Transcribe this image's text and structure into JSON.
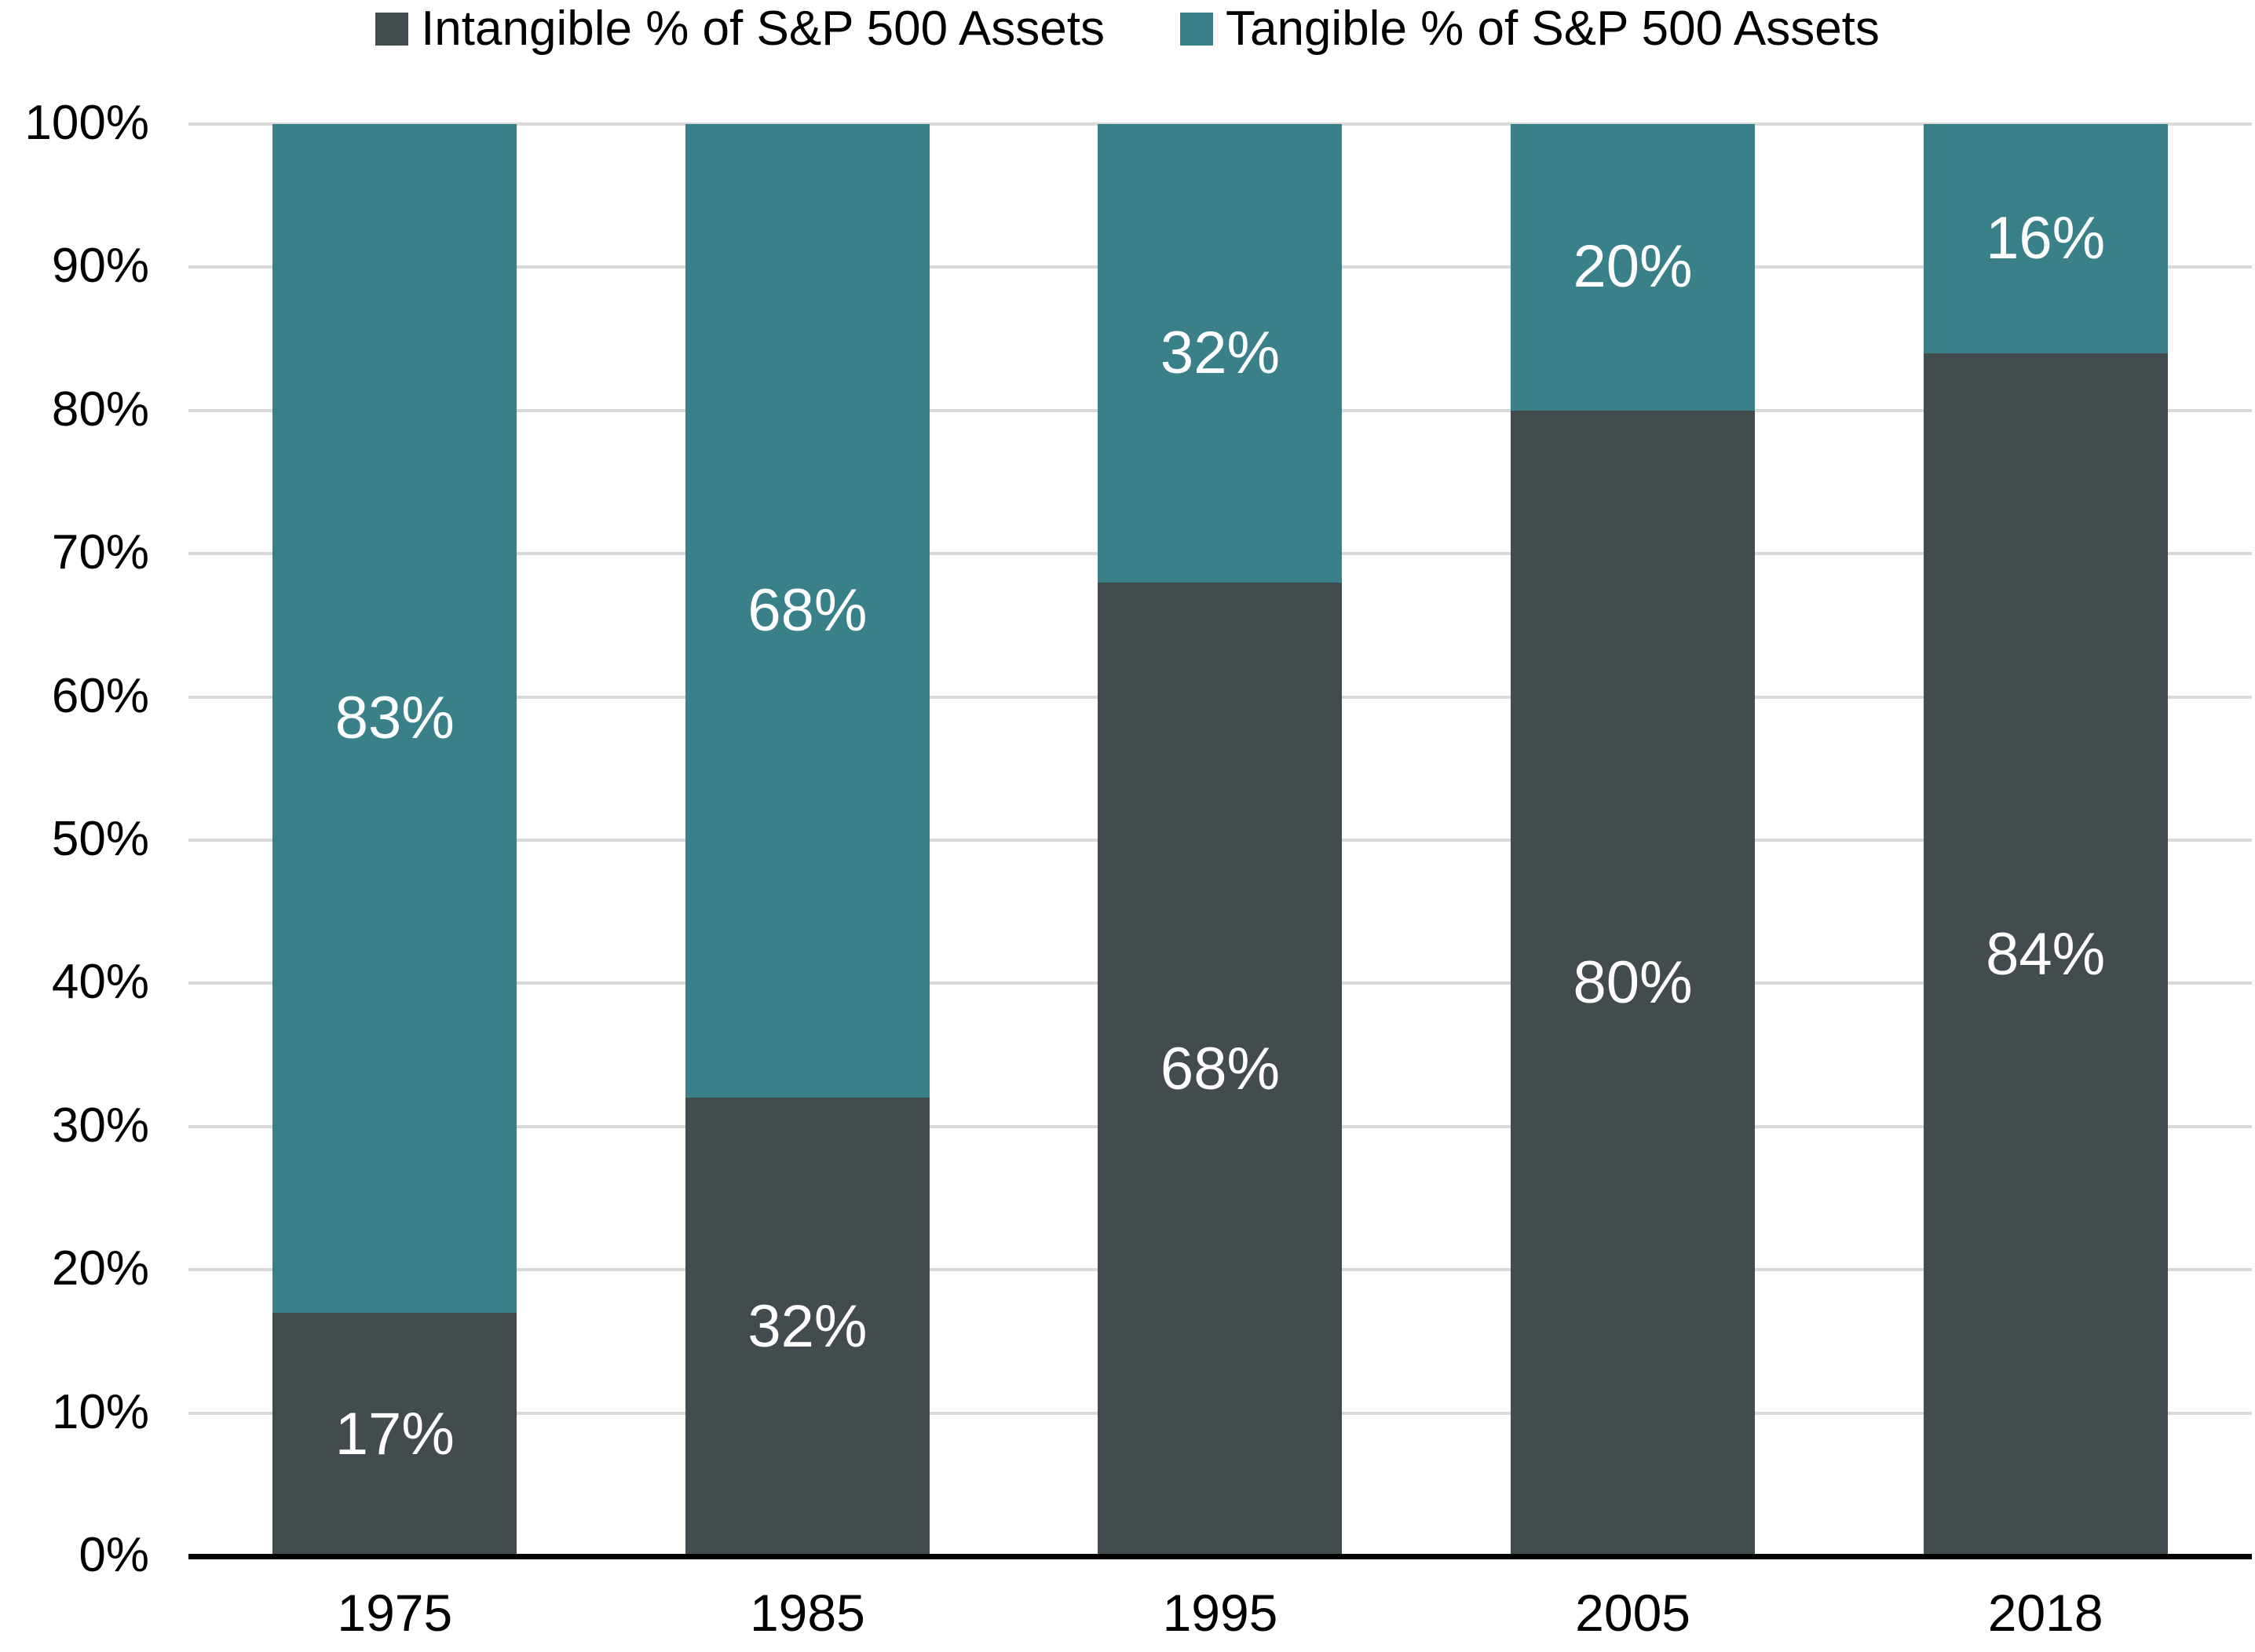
{
  "chart_data": {
    "type": "bar",
    "subtype": "stacked-100-percent-column",
    "title": "",
    "xlabel": "",
    "ylabel": "",
    "categories": [
      "1975",
      "1985",
      "1995",
      "2005",
      "2018"
    ],
    "series": [
      {
        "name": "Intangible % of S&P 500 Assets",
        "color": "#424B4E",
        "values": [
          17,
          32,
          68,
          80,
          84
        ],
        "data_labels": [
          "17%",
          "32%",
          "68%",
          "80%",
          "84%"
        ]
      },
      {
        "name": "Tangible % of S&P 500 Assets",
        "color": "#3A8089",
        "values": [
          83,
          68,
          32,
          20,
          16
        ],
        "data_labels": [
          "83%",
          "68%",
          "32%",
          "20%",
          "16%"
        ]
      }
    ],
    "y_axis": {
      "min": 0,
      "max": 100,
      "tick_step": 10,
      "tick_labels": [
        "0%",
        "10%",
        "20%",
        "30%",
        "40%",
        "50%",
        "60%",
        "70%",
        "80%",
        "90%",
        "100%"
      ],
      "grid": true
    },
    "legend_position": "top",
    "data_label_color": "#FFFFFF",
    "gridline_color": "#D9D9D9",
    "axis_line_color": "#000000",
    "text_color": "#000000"
  }
}
